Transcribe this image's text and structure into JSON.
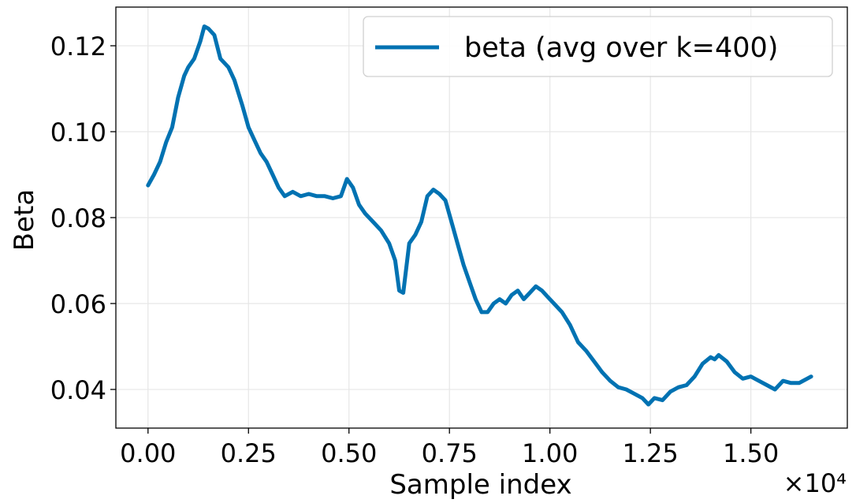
{
  "chart_data": {
    "type": "line",
    "xlabel": "Sample index",
    "ylabel": "Beta",
    "x_offset_label": "×10⁴",
    "xlim": [
      -0.08,
      1.74
    ],
    "ylim": [
      0.031,
      0.129
    ],
    "x_ticks": [
      0.0,
      0.25,
      0.5,
      0.75,
      1.0,
      1.25,
      1.5
    ],
    "x_tick_labels": [
      "0.00",
      "0.25",
      "0.50",
      "0.75",
      "1.00",
      "1.25",
      "1.50"
    ],
    "y_ticks": [
      0.04,
      0.06,
      0.08,
      0.1,
      0.12
    ],
    "y_tick_labels": [
      "0.04",
      "0.06",
      "0.08",
      "0.10",
      "0.12"
    ],
    "grid": true,
    "legend_position": "top-right",
    "series": [
      {
        "name": "beta (avg over k=400)",
        "color": "#0072b2",
        "x": [
          0.0,
          0.015,
          0.03,
          0.045,
          0.06,
          0.075,
          0.09,
          0.1,
          0.115,
          0.13,
          0.14,
          0.15,
          0.165,
          0.18,
          0.2,
          0.215,
          0.235,
          0.25,
          0.265,
          0.28,
          0.295,
          0.31,
          0.325,
          0.34,
          0.36,
          0.38,
          0.4,
          0.42,
          0.44,
          0.46,
          0.48,
          0.495,
          0.51,
          0.525,
          0.54,
          0.56,
          0.58,
          0.6,
          0.615,
          0.625,
          0.635,
          0.65,
          0.665,
          0.68,
          0.695,
          0.71,
          0.725,
          0.74,
          0.755,
          0.77,
          0.785,
          0.8,
          0.815,
          0.83,
          0.845,
          0.86,
          0.875,
          0.89,
          0.905,
          0.92,
          0.935,
          0.95,
          0.965,
          0.98,
          0.995,
          1.01,
          1.03,
          1.05,
          1.07,
          1.09,
          1.11,
          1.13,
          1.15,
          1.17,
          1.19,
          1.21,
          1.23,
          1.245,
          1.26,
          1.28,
          1.3,
          1.32,
          1.34,
          1.36,
          1.38,
          1.4,
          1.41,
          1.42,
          1.44,
          1.46,
          1.48,
          1.5,
          1.52,
          1.54,
          1.56,
          1.58,
          1.6,
          1.62,
          1.64,
          1.65
        ],
        "values": [
          0.0875,
          0.09,
          0.093,
          0.0975,
          0.101,
          0.108,
          0.113,
          0.115,
          0.117,
          0.121,
          0.1245,
          0.124,
          0.1225,
          0.117,
          0.115,
          0.112,
          0.106,
          0.101,
          0.098,
          0.095,
          0.093,
          0.09,
          0.087,
          0.085,
          0.086,
          0.085,
          0.0855,
          0.085,
          0.085,
          0.0845,
          0.085,
          0.089,
          0.087,
          0.083,
          0.081,
          0.079,
          0.077,
          0.074,
          0.07,
          0.063,
          0.0625,
          0.074,
          0.076,
          0.079,
          0.085,
          0.0865,
          0.0855,
          0.084,
          0.079,
          0.074,
          0.069,
          0.065,
          0.061,
          0.058,
          0.058,
          0.06,
          0.061,
          0.06,
          0.062,
          0.063,
          0.061,
          0.0625,
          0.064,
          0.063,
          0.0615,
          0.06,
          0.058,
          0.055,
          0.051,
          0.049,
          0.0465,
          0.044,
          0.042,
          0.0405,
          0.04,
          0.039,
          0.038,
          0.0365,
          0.038,
          0.0375,
          0.0395,
          0.0405,
          0.041,
          0.043,
          0.046,
          0.0475,
          0.047,
          0.048,
          0.0465,
          0.044,
          0.0425,
          0.043,
          0.042,
          0.041,
          0.04,
          0.042,
          0.0415,
          0.0415,
          0.0425,
          0.043
        ]
      }
    ]
  }
}
